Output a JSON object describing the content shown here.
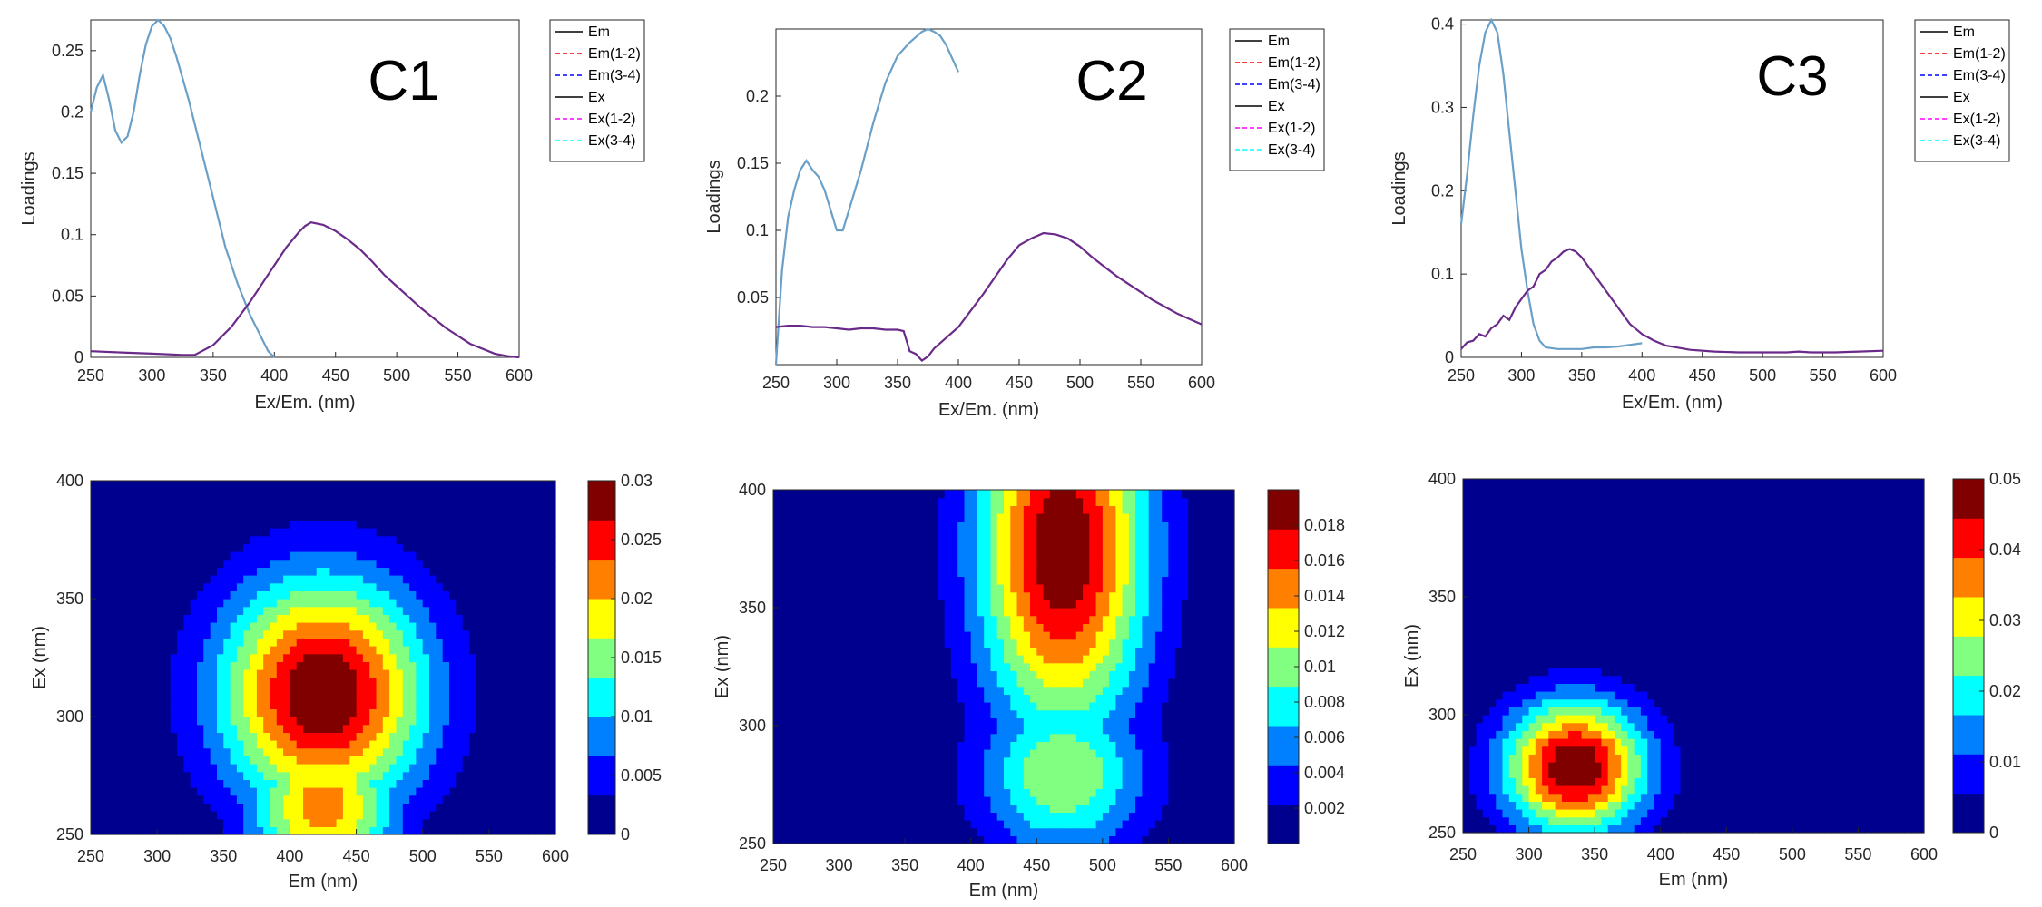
{
  "colors": {
    "Em": "#000000",
    "Em(1-2)": "#ff0000",
    "Em(3-4)": "#0000ff",
    "Ex": "#000000",
    "Ex(1-2)": "#ff00ff",
    "Ex(3-4)": "#00ffff",
    "emission_curve": "#6a2a8a",
    "excitation_curve": "#6aa0c8",
    "jet": [
      "#00008f",
      "#0000ff",
      "#0080ff",
      "#00ffff",
      "#80ff80",
      "#ffff00",
      "#ff8000",
      "#ff0000",
      "#800000"
    ]
  },
  "legend_entries": [
    {
      "label": "Em",
      "style": "solid",
      "color": "#000000"
    },
    {
      "label": "Em(1-2)",
      "style": "dashed",
      "color": "#ff0000"
    },
    {
      "label": "Em(3-4)",
      "style": "dashed",
      "color": "#0000ff"
    },
    {
      "label": "Ex",
      "style": "solid",
      "color": "#000000"
    },
    {
      "label": "Ex(1-2)",
      "style": "dashed",
      "color": "#ff00ff"
    },
    {
      "label": "Ex(3-4)",
      "style": "dashed",
      "color": "#00ffff"
    }
  ],
  "chart_data": [
    {
      "type": "line",
      "title": "C1",
      "xlabel": "Ex/Em. (nm)",
      "ylabel": "Loadings",
      "xlim": [
        250,
        600
      ],
      "ylim": [
        0,
        0.275
      ],
      "xticks": [
        250,
        300,
        350,
        400,
        450,
        500,
        550,
        600
      ],
      "yticks": [
        0,
        0.05,
        0.1,
        0.15,
        0.2,
        0.25
      ],
      "ytick_labels": [
        "0",
        "0.05",
        "0.1",
        "0.15",
        "0.2",
        "0.25"
      ],
      "legend_location": "top-right",
      "series": [
        {
          "name": "Ex",
          "x": [
            250,
            255,
            260,
            265,
            270,
            275,
            280,
            285,
            290,
            295,
            300,
            305,
            310,
            315,
            320,
            330,
            340,
            350,
            360,
            370,
            380,
            390,
            395,
            400
          ],
          "y": [
            0.2,
            0.22,
            0.23,
            0.21,
            0.185,
            0.175,
            0.18,
            0.2,
            0.23,
            0.255,
            0.27,
            0.275,
            0.27,
            0.26,
            0.245,
            0.21,
            0.17,
            0.13,
            0.09,
            0.06,
            0.035,
            0.015,
            0.005,
            0.0
          ]
        },
        {
          "name": "Em",
          "x": [
            250,
            275,
            300,
            325,
            335,
            350,
            365,
            380,
            390,
            400,
            410,
            420,
            425,
            430,
            440,
            450,
            460,
            470,
            480,
            490,
            500,
            520,
            540,
            560,
            580,
            590,
            600
          ],
          "y": [
            0.005,
            0.004,
            0.003,
            0.002,
            0.002,
            0.01,
            0.025,
            0.045,
            0.06,
            0.075,
            0.09,
            0.102,
            0.107,
            0.11,
            0.108,
            0.103,
            0.096,
            0.088,
            0.078,
            0.067,
            0.058,
            0.04,
            0.024,
            0.011,
            0.003,
            0.001,
            0.0
          ]
        }
      ]
    },
    {
      "type": "line",
      "title": "C2",
      "xlabel": "Ex/Em. (nm)",
      "ylabel": "Loadings",
      "xlim": [
        250,
        600
      ],
      "ylim": [
        0,
        0.25
      ],
      "xticks": [
        250,
        300,
        350,
        400,
        450,
        500,
        550,
        600
      ],
      "yticks": [
        0.05,
        0.1,
        0.15,
        0.2
      ],
      "ytick_labels": [
        "0.05",
        "0.1",
        "0.15",
        "0.2"
      ],
      "legend_location": "top-right",
      "series": [
        {
          "name": "Ex",
          "x": [
            250,
            255,
            260,
            265,
            270,
            275,
            280,
            285,
            290,
            295,
            300,
            305,
            310,
            320,
            330,
            340,
            350,
            360,
            370,
            375,
            380,
            385,
            390,
            395,
            400
          ],
          "y": [
            0.0,
            0.07,
            0.11,
            0.13,
            0.145,
            0.152,
            0.145,
            0.14,
            0.13,
            0.115,
            0.1,
            0.1,
            0.115,
            0.145,
            0.18,
            0.21,
            0.23,
            0.24,
            0.248,
            0.25,
            0.248,
            0.245,
            0.238,
            0.228,
            0.218
          ]
        },
        {
          "name": "Em",
          "x": [
            250,
            260,
            270,
            280,
            290,
            300,
            310,
            320,
            330,
            340,
            350,
            355,
            360,
            365,
            370,
            375,
            380,
            390,
            400,
            410,
            420,
            430,
            440,
            450,
            460,
            470,
            480,
            490,
            500,
            510,
            520,
            530,
            540,
            550,
            560,
            570,
            580,
            590,
            600
          ],
          "y": [
            0.028,
            0.029,
            0.029,
            0.028,
            0.028,
            0.027,
            0.026,
            0.027,
            0.027,
            0.026,
            0.026,
            0.025,
            0.01,
            0.008,
            0.003,
            0.006,
            0.012,
            0.02,
            0.028,
            0.04,
            0.052,
            0.065,
            0.078,
            0.089,
            0.094,
            0.098,
            0.097,
            0.094,
            0.088,
            0.08,
            0.073,
            0.066,
            0.06,
            0.054,
            0.048,
            0.043,
            0.038,
            0.034,
            0.03
          ]
        }
      ]
    },
    {
      "type": "line",
      "title": "C3",
      "xlabel": "Ex/Em. (nm)",
      "ylabel": "Loadings",
      "xlim": [
        250,
        600
      ],
      "ylim": [
        0,
        0.405
      ],
      "xticks": [
        250,
        300,
        350,
        400,
        450,
        500,
        550,
        600
      ],
      "yticks": [
        0,
        0.1,
        0.2,
        0.3,
        0.4
      ],
      "ytick_labels": [
        "0",
        "0.1",
        "0.2",
        "0.3",
        "0.4"
      ],
      "legend_location": "top-right",
      "series": [
        {
          "name": "Ex",
          "x": [
            250,
            255,
            260,
            265,
            270,
            275,
            280,
            285,
            290,
            295,
            300,
            305,
            310,
            315,
            320,
            330,
            340,
            350,
            360,
            370,
            380,
            390,
            400
          ],
          "y": [
            0.16,
            0.22,
            0.29,
            0.35,
            0.39,
            0.405,
            0.39,
            0.34,
            0.27,
            0.2,
            0.13,
            0.08,
            0.04,
            0.02,
            0.012,
            0.01,
            0.01,
            0.01,
            0.012,
            0.012,
            0.013,
            0.015,
            0.017
          ]
        },
        {
          "name": "Em",
          "x": [
            250,
            255,
            260,
            265,
            270,
            275,
            280,
            285,
            290,
            295,
            300,
            305,
            310,
            315,
            320,
            325,
            330,
            335,
            340,
            345,
            350,
            360,
            370,
            380,
            390,
            400,
            410,
            420,
            440,
            460,
            480,
            500,
            520,
            530,
            540,
            560,
            580,
            600
          ],
          "y": [
            0.01,
            0.018,
            0.02,
            0.028,
            0.025,
            0.035,
            0.04,
            0.05,
            0.045,
            0.06,
            0.07,
            0.08,
            0.085,
            0.1,
            0.105,
            0.115,
            0.12,
            0.127,
            0.13,
            0.127,
            0.12,
            0.1,
            0.08,
            0.06,
            0.04,
            0.028,
            0.02,
            0.014,
            0.009,
            0.007,
            0.006,
            0.006,
            0.006,
            0.007,
            0.006,
            0.006,
            0.007,
            0.008
          ]
        }
      ]
    },
    {
      "type": "heatmap",
      "xlabel": "Em (nm)",
      "ylabel": "Ex (nm)",
      "xlim": [
        250,
        600
      ],
      "ylim": [
        250,
        400
      ],
      "xticks": [
        250,
        300,
        350,
        400,
        450,
        500,
        550,
        600
      ],
      "yticks": [
        250,
        300,
        350,
        400
      ],
      "colorbar": {
        "min": 0,
        "max": 0.03,
        "ticks": [
          0,
          0.005,
          0.01,
          0.015,
          0.02,
          0.025,
          0.03
        ],
        "tick_labels": [
          "0",
          "0.005",
          "0.01",
          "0.015",
          "0.02",
          "0.025",
          "0.03"
        ]
      },
      "peaks": [
        {
          "em": 425,
          "ex": 310,
          "value": 0.03,
          "sigma_em": 55,
          "sigma_ex": 35
        },
        {
          "em": 425,
          "ex": 262,
          "value": 0.022,
          "sigma_em": 40,
          "sigma_ex": 22
        }
      ]
    },
    {
      "type": "heatmap",
      "xlabel": "Em (nm)",
      "ylabel": "Ex (nm)",
      "xlim": [
        250,
        600
      ],
      "ylim": [
        250,
        400
      ],
      "xticks": [
        250,
        300,
        350,
        400,
        450,
        500,
        550,
        600
      ],
      "yticks": [
        250,
        300,
        350,
        400
      ],
      "colorbar": {
        "min": 0,
        "max": 0.02,
        "ticks": [
          0.002,
          0.004,
          0.006,
          0.008,
          0.01,
          0.012,
          0.014,
          0.016,
          0.018
        ],
        "tick_labels": [
          "0.002",
          "0.004",
          "0.006",
          "0.008",
          "0.01",
          "0.012",
          "0.014",
          "0.016",
          "0.018"
        ]
      },
      "peaks": [
        {
          "em": 470,
          "ex": 375,
          "value": 0.02,
          "sigma_em": 45,
          "sigma_ex": 55
        },
        {
          "em": 470,
          "ex": 280,
          "value": 0.011,
          "sigma_em": 45,
          "sigma_ex": 25
        }
      ]
    },
    {
      "type": "heatmap",
      "xlabel": "Em (nm)",
      "ylabel": "Ex (nm)",
      "xlim": [
        250,
        600
      ],
      "ylim": [
        250,
        400
      ],
      "xticks": [
        250,
        300,
        350,
        400,
        450,
        500,
        550,
        600
      ],
      "yticks": [
        250,
        300,
        350,
        400
      ],
      "colorbar": {
        "min": 0,
        "max": 0.05,
        "ticks": [
          0,
          0.01,
          0.02,
          0.03,
          0.04,
          0.05
        ],
        "tick_labels": [
          "0",
          "0.01",
          "0.02",
          "0.03",
          "0.04",
          "0.05"
        ]
      },
      "peaks": [
        {
          "em": 335,
          "ex": 278,
          "value": 0.05,
          "sigma_em": 38,
          "sigma_ex": 20
        }
      ]
    }
  ]
}
